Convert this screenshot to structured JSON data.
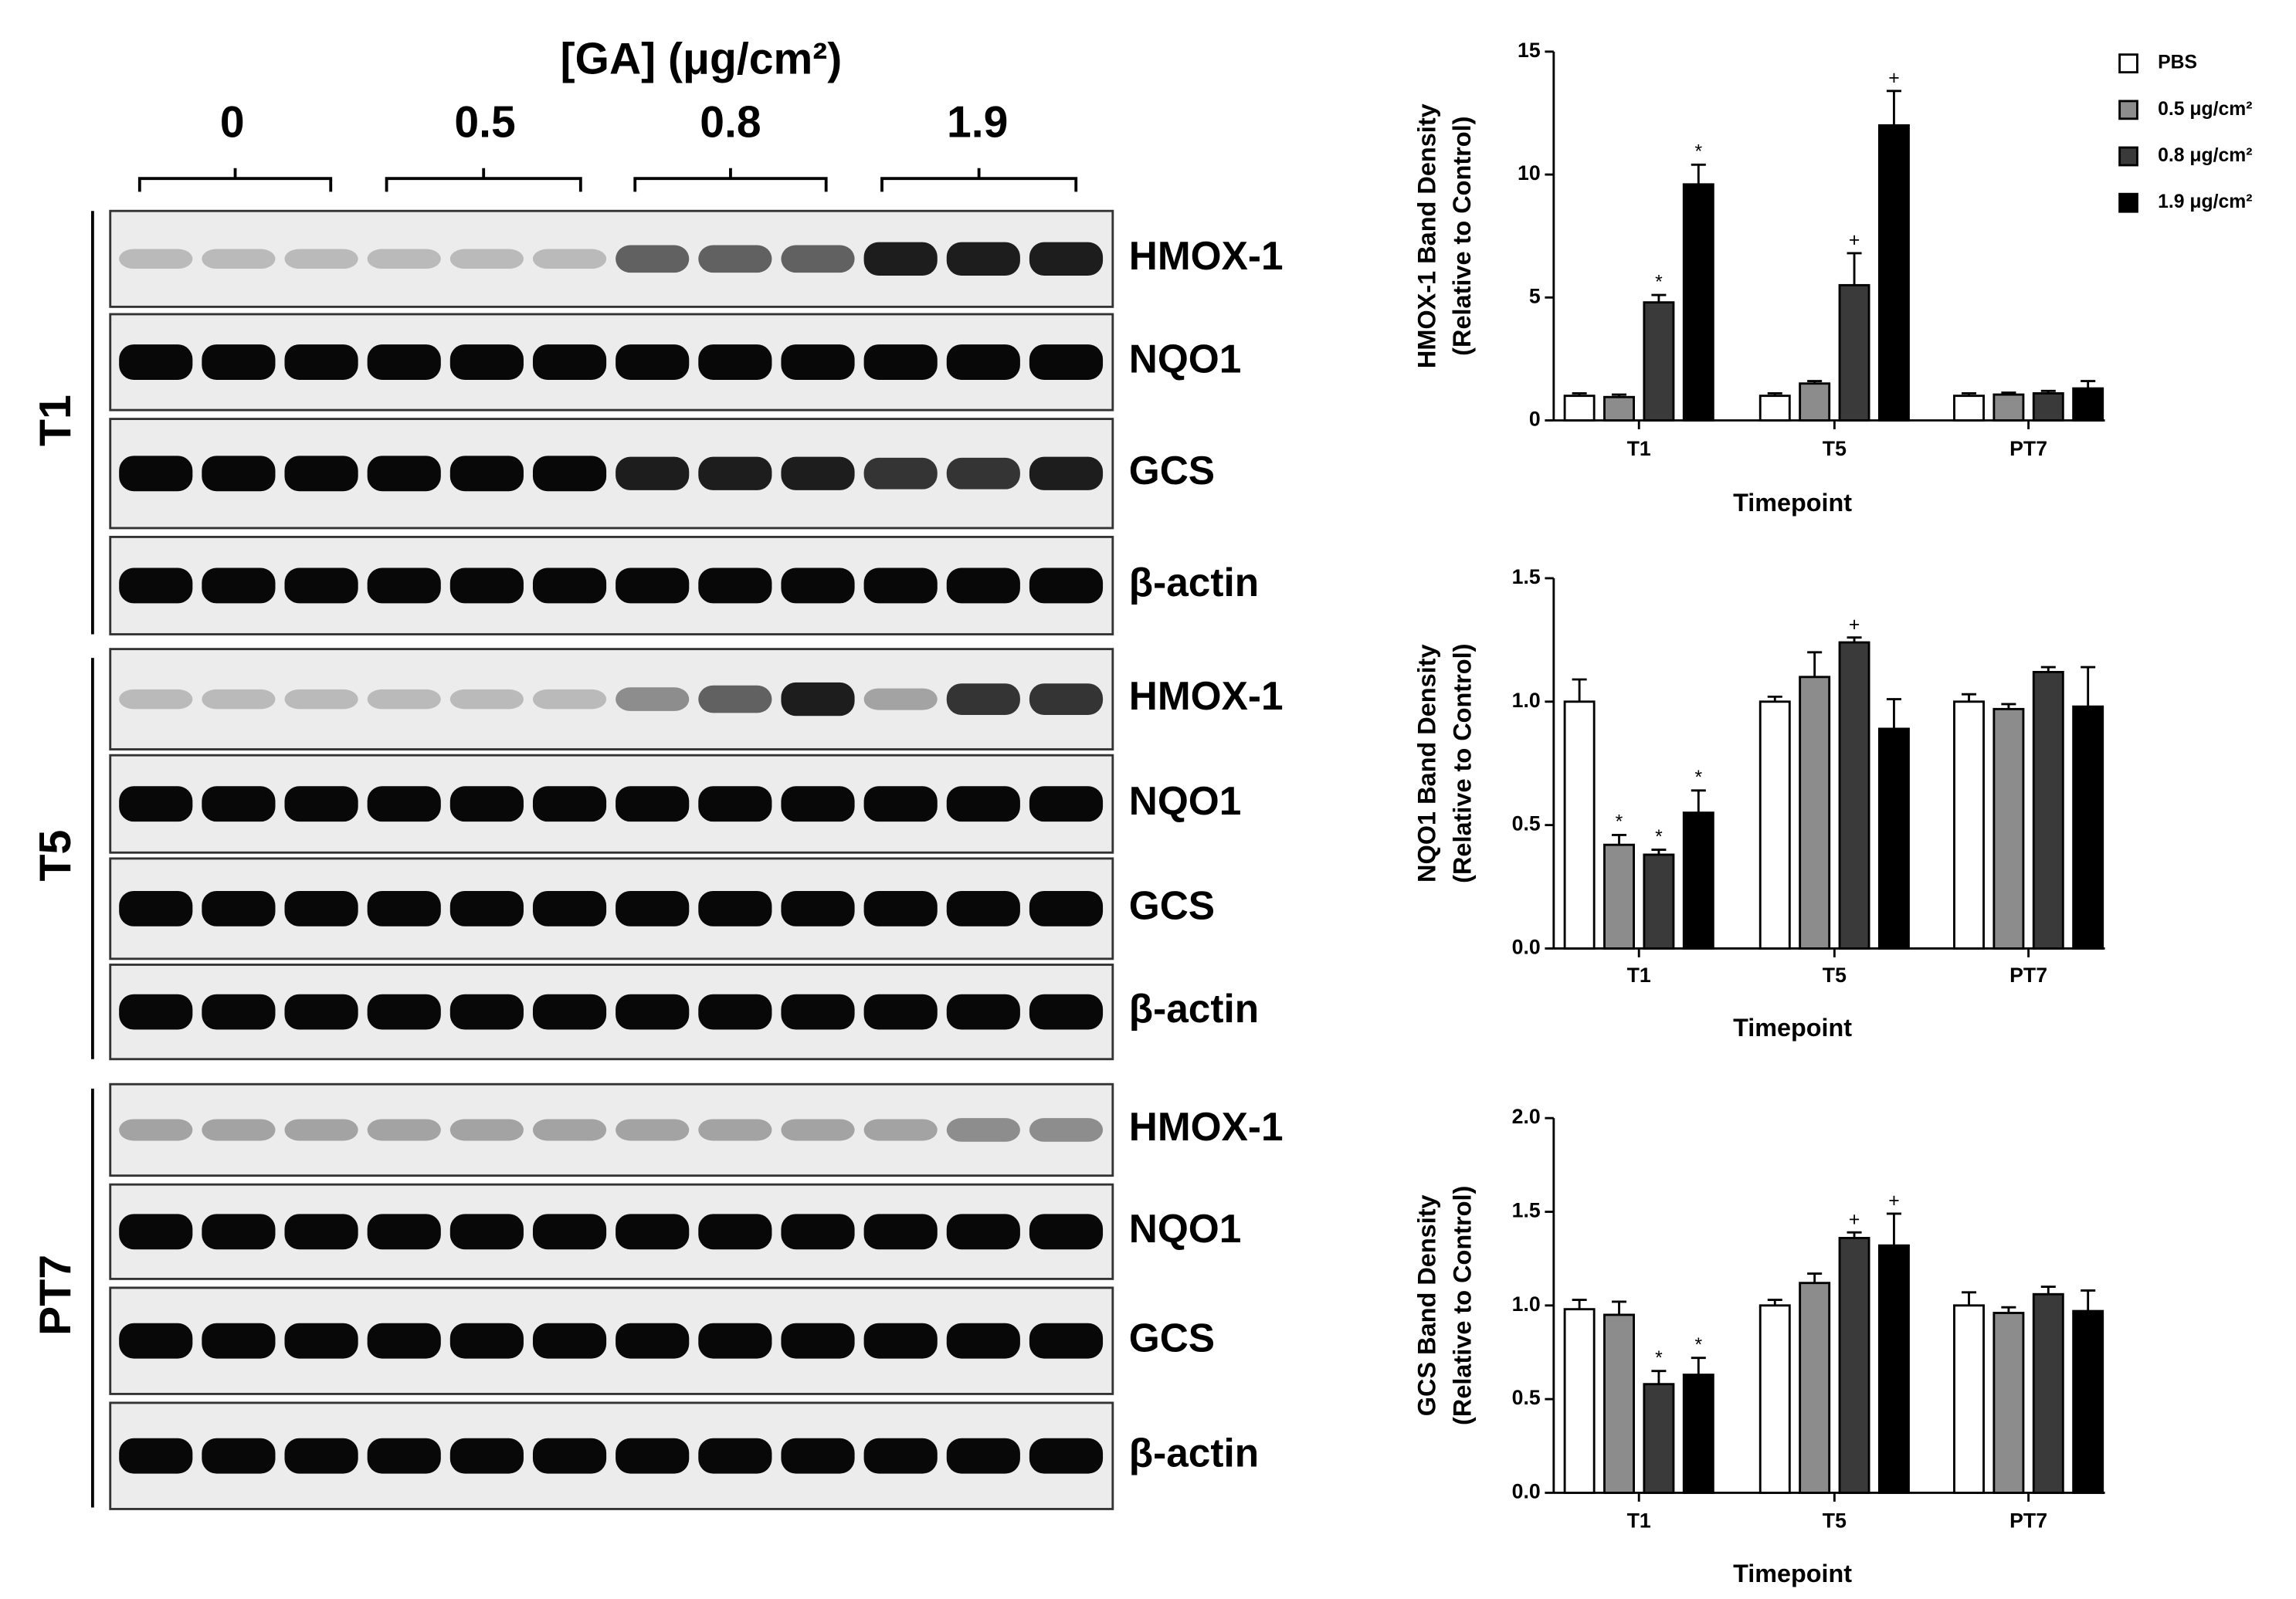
{
  "blot": {
    "header": "[GA] (μg/cm²)",
    "doses": [
      "0",
      "0.5",
      "0.8",
      "1.9"
    ],
    "timepoints": [
      "T1",
      "T5",
      "PT7"
    ],
    "proteins": [
      "HMOX-1",
      "NQO1",
      "GCS",
      "β-actin"
    ]
  },
  "chart_data": [
    {
      "type": "bar",
      "categories": [
        "T1",
        "T5",
        "PT7"
      ],
      "x_label": "Timepoint",
      "y_label": [
        "HMOX-1 Band Density",
        "(Relative to Control)"
      ],
      "ylim": [
        0,
        15
      ],
      "yticks": [
        0,
        5,
        10,
        15
      ],
      "legend": "top-right",
      "series": [
        {
          "name": "PBS",
          "color": "#ffffff",
          "values": [
            1,
            1,
            1
          ],
          "errors": [
            0.1,
            0.1,
            0.1
          ],
          "markers": [
            null,
            null,
            null
          ]
        },
        {
          "name": "0.5 μg/cm²",
          "color": "#8c8c8c",
          "values": [
            0.95,
            1.5,
            1.05
          ],
          "errors": [
            0.1,
            0.1,
            0.08
          ],
          "markers": [
            null,
            null,
            null
          ]
        },
        {
          "name": "0.8 μg/cm²",
          "color": "#3a3a3a",
          "values": [
            4.8,
            5.5,
            1.1
          ],
          "errors": [
            0.3,
            1.3,
            0.1
          ],
          "markers": [
            "*",
            "+",
            null
          ]
        },
        {
          "name": "1.9 μg/cm²",
          "color": "#000000",
          "values": [
            9.6,
            12,
            1.3
          ],
          "errors": [
            0.8,
            1.4,
            0.3
          ],
          "markers": [
            "*",
            "+",
            null
          ]
        }
      ]
    },
    {
      "type": "bar",
      "categories": [
        "T1",
        "T5",
        "PT7"
      ],
      "x_label": "Timepoint",
      "y_label": [
        "NQO1 Band Density",
        "(Relative to Control)"
      ],
      "ylim": [
        0,
        1.5
      ],
      "yticks": [
        {
          "value": 0,
          "label": "0.0"
        },
        0.5,
        {
          "value": 1,
          "label": "1.0"
        },
        1.5
      ],
      "series": [
        {
          "color": "#ffffff",
          "values": [
            1.0,
            1.0,
            1.0
          ],
          "errors": [
            0.09,
            0.02,
            0.03
          ],
          "markers": [
            null,
            null,
            null
          ]
        },
        {
          "color": "#8c8c8c",
          "values": [
            0.42,
            1.1,
            0.97
          ],
          "errors": [
            0.04,
            0.1,
            0.02
          ],
          "markers": [
            "*",
            null,
            null
          ]
        },
        {
          "color": "#3a3a3a",
          "values": [
            0.38,
            1.24,
            1.12
          ],
          "errors": [
            0.02,
            0.02,
            0.02
          ],
          "markers": [
            "*",
            "+",
            null
          ]
        },
        {
          "color": "#000000",
          "values": [
            0.55,
            0.89,
            0.98
          ],
          "errors": [
            0.09,
            0.12,
            0.16
          ],
          "markers": [
            "*",
            null,
            null
          ]
        }
      ]
    },
    {
      "type": "bar",
      "categories": [
        "T1",
        "T5",
        "PT7"
      ],
      "x_label": "Timepoint",
      "y_label": [
        "GCS Band Density",
        "(Relative to Control)"
      ],
      "ylim": [
        0,
        2
      ],
      "yticks": [
        {
          "value": 0,
          "label": "0.0"
        },
        0.5,
        {
          "value": 1,
          "label": "1.0"
        },
        1.5,
        {
          "value": 2,
          "label": "2.0"
        }
      ],
      "series": [
        {
          "color": "#ffffff",
          "values": [
            0.98,
            1.0,
            1.0
          ],
          "errors": [
            0.05,
            0.03,
            0.07
          ],
          "markers": [
            null,
            null,
            null
          ]
        },
        {
          "color": "#8c8c8c",
          "values": [
            0.95,
            1.12,
            0.96
          ],
          "errors": [
            0.07,
            0.05,
            0.03
          ],
          "markers": [
            null,
            null,
            null
          ]
        },
        {
          "color": "#3a3a3a",
          "values": [
            0.58,
            1.36,
            1.06
          ],
          "errors": [
            0.07,
            0.03,
            0.04
          ],
          "markers": [
            "*",
            "+",
            null
          ]
        },
        {
          "color": "#000000",
          "values": [
            0.63,
            1.32,
            0.97
          ],
          "errors": [
            0.09,
            0.17,
            0.11
          ],
          "markers": [
            "*",
            "+",
            null
          ]
        }
      ]
    }
  ]
}
